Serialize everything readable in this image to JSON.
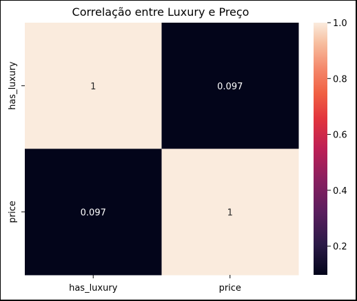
{
  "chart_data": {
    "type": "heatmap",
    "title": "Correlação entre Luxury e Preço",
    "xlabel": "",
    "ylabel": "",
    "x_categories": [
      "has_luxury",
      "price"
    ],
    "y_categories": [
      "has_luxury",
      "price"
    ],
    "values": [
      [
        1,
        0.097
      ],
      [
        0.097,
        1
      ]
    ],
    "annotations": [
      [
        "1",
        "0.097"
      ],
      [
        "0.097",
        "1"
      ]
    ],
    "colormap": "rocket",
    "colorbar": {
      "range": [
        0.097,
        1.0
      ],
      "ticks": [
        0.2,
        0.4,
        0.6,
        0.8,
        1.0
      ],
      "tick_labels": [
        "0.2",
        "0.4",
        "0.6",
        "0.8",
        "1.0"
      ]
    }
  }
}
